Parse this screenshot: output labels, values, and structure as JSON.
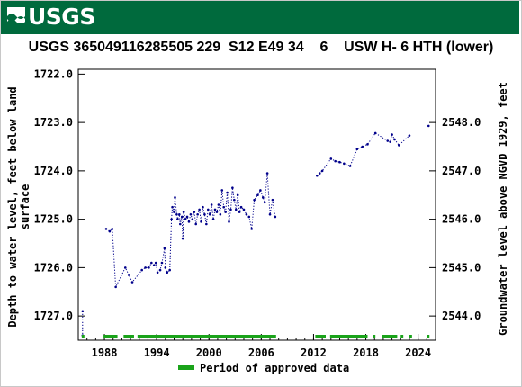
{
  "header": {
    "logo_text": "USGS",
    "logo_color": "#006a3d"
  },
  "chart_data": {
    "type": "scatter",
    "title": "USGS 365049116285505 229  S12 E49 34    6    USW H- 6 HTH (lower)",
    "ylabel_left": "Depth to water level, feet below land surface",
    "ylabel_right": "Groundwater level above NGVD 1929, feet",
    "ylim_left": [
      1727.5,
      1721.9
    ],
    "xlim": [
      1985.0,
      2026.0
    ],
    "left_ticks": [
      "1722.0",
      "1723.0",
      "1724.0",
      "1725.0",
      "1726.0",
      "1727.0"
    ],
    "left_tick_values": [
      1722,
      1723,
      1724,
      1725,
      1726,
      1727
    ],
    "right_ticks": [
      "2548.0",
      "2547.0",
      "2546.0",
      "2545.0",
      "2544.0"
    ],
    "right_tick_values": [
      2548,
      2547,
      2546,
      2545,
      2544
    ],
    "x_ticks": [
      "1988",
      "1994",
      "2000",
      "2006",
      "2012",
      "2018",
      "2024"
    ],
    "x_tick_values": [
      1988,
      1994,
      2000,
      2006,
      2012,
      2018,
      2024
    ],
    "legend": "Period of approved data",
    "series_color": "#00008b",
    "approved_color": "#1aa31a",
    "series": [
      {
        "points": [
          [
            1985.5,
            1726.9
          ],
          [
            1985.5,
            1727.4
          ],
          [
            1988.2,
            1725.2
          ],
          [
            1988.6,
            1725.25
          ],
          [
            1988.9,
            1725.2
          ],
          [
            1989.3,
            1726.4
          ],
          [
            1990.4,
            1726.0
          ],
          [
            1990.8,
            1726.15
          ],
          [
            1991.2,
            1726.3
          ],
          [
            1992.3,
            1726.05
          ],
          [
            1992.7,
            1726.0
          ],
          [
            1993.1,
            1726.0
          ],
          [
            1993.4,
            1725.9
          ],
          [
            1993.7,
            1725.95
          ],
          [
            1993.9,
            1725.9
          ],
          [
            1994.1,
            1726.1
          ],
          [
            1994.4,
            1726.05
          ],
          [
            1994.6,
            1725.9
          ],
          [
            1994.9,
            1725.6
          ],
          [
            1995.0,
            1726.0
          ],
          [
            1995.2,
            1726.1
          ],
          [
            1995.5,
            1726.05
          ],
          [
            1995.7,
            1725.0
          ],
          [
            1995.8,
            1724.75
          ],
          [
            1996.0,
            1724.85
          ],
          [
            1996.1,
            1724.55
          ],
          [
            1996.3,
            1724.9
          ],
          [
            1996.4,
            1725.0
          ],
          [
            1996.6,
            1724.9
          ],
          [
            1996.7,
            1725.1
          ],
          [
            1996.9,
            1724.95
          ],
          [
            1997.0,
            1725.4
          ],
          [
            1997.1,
            1724.85
          ],
          [
            1997.3,
            1725.0
          ],
          [
            1997.5,
            1724.95
          ],
          [
            1997.7,
            1725.05
          ],
          [
            1997.9,
            1724.9
          ],
          [
            1998.1,
            1725.0
          ],
          [
            1998.3,
            1724.85
          ],
          [
            1998.5,
            1725.1
          ],
          [
            1998.7,
            1724.9
          ],
          [
            1998.9,
            1724.8
          ],
          [
            1999.1,
            1725.05
          ],
          [
            1999.3,
            1724.75
          ],
          [
            1999.5,
            1724.9
          ],
          [
            1999.7,
            1725.1
          ],
          [
            1999.9,
            1724.8
          ],
          [
            2000.1,
            1724.9
          ],
          [
            2000.3,
            1724.7
          ],
          [
            2000.5,
            1725.0
          ],
          [
            2000.7,
            1724.8
          ],
          [
            2000.9,
            1724.85
          ],
          [
            2001.1,
            1724.7
          ],
          [
            2001.3,
            1724.9
          ],
          [
            2001.5,
            1724.4
          ],
          [
            2001.7,
            1724.75
          ],
          [
            2001.9,
            1724.85
          ],
          [
            2002.1,
            1724.45
          ],
          [
            2002.3,
            1725.05
          ],
          [
            2002.5,
            1724.8
          ],
          [
            2002.7,
            1724.35
          ],
          [
            2002.9,
            1724.6
          ],
          [
            2003.1,
            1724.8
          ],
          [
            2003.3,
            1724.5
          ],
          [
            2003.5,
            1724.85
          ],
          [
            2003.7,
            1724.75
          ],
          [
            2004.0,
            1724.8
          ],
          [
            2004.3,
            1724.9
          ],
          [
            2004.6,
            1724.95
          ],
          [
            2004.9,
            1725.2
          ],
          [
            2005.2,
            1724.6
          ],
          [
            2005.6,
            1724.5
          ],
          [
            2005.9,
            1724.4
          ],
          [
            2006.2,
            1724.55
          ],
          [
            2006.4,
            1724.65
          ],
          [
            2006.7,
            1724.05
          ],
          [
            2007.0,
            1724.9
          ],
          [
            2007.3,
            1724.6
          ],
          [
            2007.6,
            1724.95
          ],
          [
            2012.4,
            1724.1
          ],
          [
            2012.7,
            1724.05
          ],
          [
            2013.0,
            1724.0
          ],
          [
            2014.0,
            1723.75
          ],
          [
            2014.5,
            1723.8
          ],
          [
            2015.0,
            1723.82
          ],
          [
            2015.5,
            1723.85
          ],
          [
            2016.2,
            1723.9
          ],
          [
            2017.0,
            1723.55
          ],
          [
            2017.6,
            1723.5
          ],
          [
            2018.2,
            1723.45
          ],
          [
            2019.1,
            1723.22
          ],
          [
            2020.5,
            1723.38
          ],
          [
            2020.8,
            1723.4
          ],
          [
            2021.0,
            1723.25
          ],
          [
            2021.3,
            1723.35
          ],
          [
            2021.8,
            1723.47
          ],
          [
            2023.0,
            1723.27
          ],
          [
            2025.2,
            1723.07
          ]
        ]
      }
    ],
    "approved_periods": [
      [
        1985.4,
        1985.7
      ],
      [
        1987.9,
        1989.5
      ],
      [
        1990.2,
        1991.4
      ],
      [
        1991.8,
        2007.7
      ],
      [
        2012.2,
        2013.4
      ],
      [
        2013.9,
        2018.2
      ],
      [
        2018.8,
        2019.1
      ],
      [
        2019.9,
        2021.6
      ],
      [
        2022.0,
        2022.3
      ],
      [
        2023.0,
        2023.3
      ],
      [
        2025.0,
        2025.3
      ]
    ]
  }
}
